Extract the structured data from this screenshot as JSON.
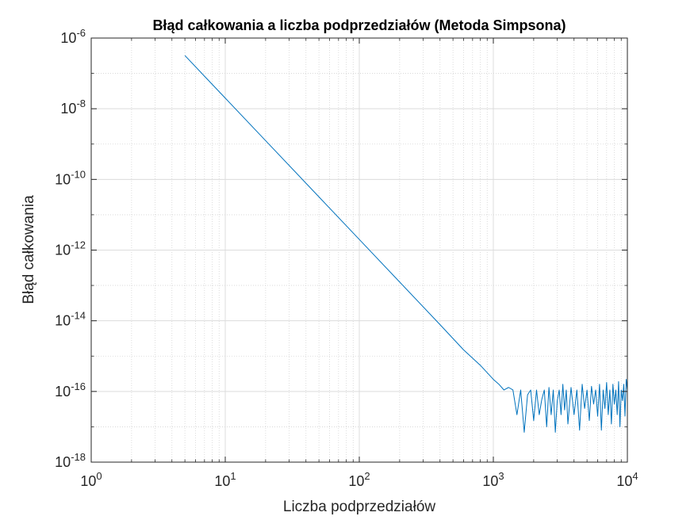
{
  "chart_data": {
    "type": "line",
    "title": "Błąd całkowania a liczba podprzedziałów (Metoda Simpsona)",
    "xlabel": "Liczba podprzedziałów",
    "ylabel": "Błąd całkowania",
    "xscale": "log",
    "yscale": "log",
    "xlim": [
      1,
      10000
    ],
    "ylim": [
      1e-18,
      1e-06
    ],
    "grid": true,
    "minor_grid": true,
    "x_ticks": [
      {
        "value": 1,
        "base": "10",
        "exp": "0"
      },
      {
        "value": 10,
        "base": "10",
        "exp": "1"
      },
      {
        "value": 100,
        "base": "10",
        "exp": "2"
      },
      {
        "value": 1000,
        "base": "10",
        "exp": "3"
      },
      {
        "value": 10000,
        "base": "10",
        "exp": "4"
      }
    ],
    "y_ticks": [
      {
        "value": 1e-06,
        "base": "10",
        "exp": "-6"
      },
      {
        "value": 1e-08,
        "base": "10",
        "exp": "-8"
      },
      {
        "value": 1e-10,
        "base": "10",
        "exp": "-10"
      },
      {
        "value": 1e-12,
        "base": "10",
        "exp": "-12"
      },
      {
        "value": 1e-14,
        "base": "10",
        "exp": "-14"
      },
      {
        "value": 1e-16,
        "base": "10",
        "exp": "-16"
      },
      {
        "value": 1e-18,
        "base": "10",
        "exp": "-18"
      }
    ],
    "series": [
      {
        "color": "#0072BD",
        "x": [
          5,
          10,
          20,
          50,
          100,
          200,
          400,
          600,
          800,
          1000,
          1100,
          1200,
          1300,
          1400,
          1500,
          1600,
          1700,
          1800,
          1900,
          2000,
          2100,
          2200,
          2300,
          2400,
          2500,
          2600,
          2700,
          2800,
          2900,
          3000,
          3100,
          3200,
          3300,
          3400,
          3500,
          3600,
          3800,
          4000,
          4200,
          4400,
          4600,
          4800,
          5000,
          5200,
          5400,
          5600,
          5800,
          6000,
          6200,
          6400,
          6600,
          6800,
          7000,
          7200,
          7400,
          7600,
          7800,
          8000,
          8200,
          8400,
          8600,
          8800,
          9000,
          9200,
          9400,
          9600,
          9800,
          10000
        ],
        "y": [
          3.2e-07,
          2e-08,
          1.25e-09,
          3.2e-11,
          2e-12,
          1.25e-13,
          7.8e-15,
          1.5e-15,
          5.5e-16,
          2.2e-16,
          1.6e-16,
          1.1e-16,
          1.3e-16,
          1.1e-16,
          2.2e-17,
          1.1e-16,
          7e-18,
          8e-17,
          1.1e-16,
          1.5e-17,
          1.1e-16,
          2.2e-17,
          6e-17,
          1.1e-16,
          1e-17,
          1.3e-16,
          2.2e-17,
          1.1e-16,
          7e-18,
          5.5e-17,
          1.1e-16,
          2.2e-17,
          1.6e-16,
          3e-17,
          1.1e-16,
          1.2e-17,
          1.3e-16,
          2.2e-17,
          1.1e-16,
          8e-18,
          1.6e-16,
          3.3e-17,
          1.1e-16,
          1.5e-17,
          1.4e-16,
          4.4e-17,
          1.1e-16,
          2e-17,
          1.6e-16,
          8e-18,
          1.1e-16,
          3.3e-17,
          1.8e-16,
          2.2e-17,
          1.1e-16,
          1.2e-17,
          1.6e-16,
          4.4e-17,
          1.1e-16,
          2.2e-17,
          1.9e-16,
          1e-17,
          1.1e-16,
          5.5e-17,
          1.6e-16,
          2e-17,
          2.2e-16,
          1.1e-16
        ]
      }
    ]
  }
}
